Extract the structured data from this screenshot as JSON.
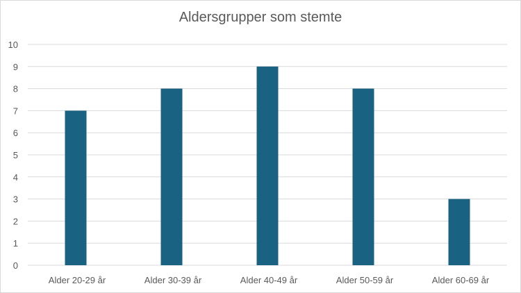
{
  "chart_data": {
    "type": "bar",
    "title": "Aldersgrupper som stemte",
    "categories": [
      "Alder 20-29 år",
      "Alder 30-39 år",
      "Alder 40-49 år",
      "Alder 50-59 år",
      "Alder 60-69 år"
    ],
    "series": [
      {
        "values": [
          7,
          8,
          9,
          8,
          3
        ]
      }
    ],
    "ylim": [
      0,
      10
    ],
    "yticks": [
      0,
      1,
      2,
      3,
      4,
      5,
      6,
      7,
      8,
      9,
      10
    ],
    "grid": true,
    "bar_color": "#1a6282",
    "grid_color": "#d9d9d9"
  }
}
